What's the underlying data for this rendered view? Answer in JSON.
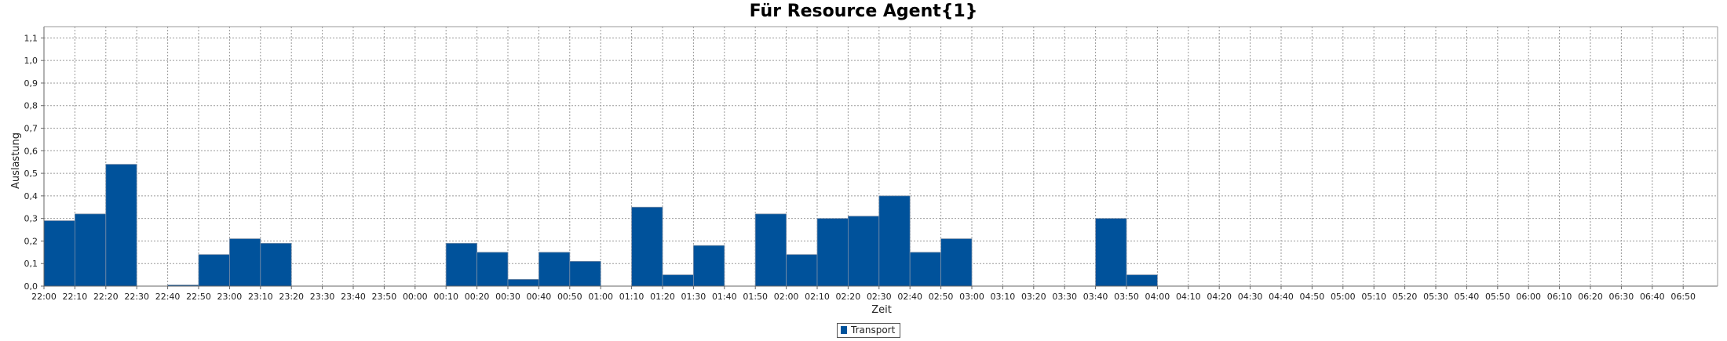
{
  "chart_data": {
    "type": "bar",
    "title": "Für Resource Agent{1}",
    "xlabel": "Zeit",
    "ylabel": "Auslastung",
    "ylim": [
      0,
      1.15
    ],
    "yticks": [
      "0,0",
      "0,1",
      "0,2",
      "0,3",
      "0,4",
      "0,5",
      "0,6",
      "0,7",
      "0,8",
      "0,9",
      "1,0",
      "1,1"
    ],
    "xticks": [
      "22:00",
      "22:10",
      "22:20",
      "22:30",
      "22:40",
      "22:50",
      "23:00",
      "23:10",
      "23:20",
      "23:30",
      "23:40",
      "23:50",
      "00:00",
      "00:10",
      "00:20",
      "00:30",
      "00:40",
      "00:50",
      "01:00",
      "01:10",
      "01:20",
      "01:30",
      "01:40",
      "01:50",
      "02:00",
      "02:10",
      "02:20",
      "02:30",
      "02:40",
      "02:50",
      "03:00",
      "03:10",
      "03:20",
      "03:30",
      "03:40",
      "03:50",
      "04:00",
      "04:10",
      "04:20",
      "04:30",
      "04:40",
      "04:50",
      "05:00",
      "05:10",
      "05:20",
      "05:30",
      "05:40",
      "05:50",
      "06:00",
      "06:10",
      "06:20",
      "06:30",
      "06:40",
      "06:50"
    ],
    "grid": true,
    "legend_position": "bottom-center",
    "series": [
      {
        "name": "Transport",
        "color": "#00529b",
        "bars": [
          {
            "start": "22:00",
            "value": 0.29
          },
          {
            "start": "22:10",
            "value": 0.32
          },
          {
            "start": "22:20",
            "value": 0.54
          },
          {
            "start": "22:40",
            "value": 0.005
          },
          {
            "start": "22:50",
            "value": 0.14
          },
          {
            "start": "23:00",
            "value": 0.21
          },
          {
            "start": "23:10",
            "value": 0.19
          },
          {
            "start": "00:10",
            "value": 0.19
          },
          {
            "start": "00:20",
            "value": 0.15
          },
          {
            "start": "00:30",
            "value": 0.03
          },
          {
            "start": "00:40",
            "value": 0.15
          },
          {
            "start": "00:50",
            "value": 0.11
          },
          {
            "start": "01:10",
            "value": 0.35
          },
          {
            "start": "01:20",
            "value": 0.05
          },
          {
            "start": "01:30",
            "value": 0.18
          },
          {
            "start": "01:50",
            "value": 0.32
          },
          {
            "start": "02:00",
            "value": 0.14
          },
          {
            "start": "02:10",
            "value": 0.3
          },
          {
            "start": "02:20",
            "value": 0.31
          },
          {
            "start": "02:30",
            "value": 0.4
          },
          {
            "start": "02:40",
            "value": 0.15
          },
          {
            "start": "02:50",
            "value": 0.21
          },
          {
            "start": "03:40",
            "value": 0.3
          },
          {
            "start": "03:50",
            "value": 0.05
          }
        ]
      }
    ]
  }
}
